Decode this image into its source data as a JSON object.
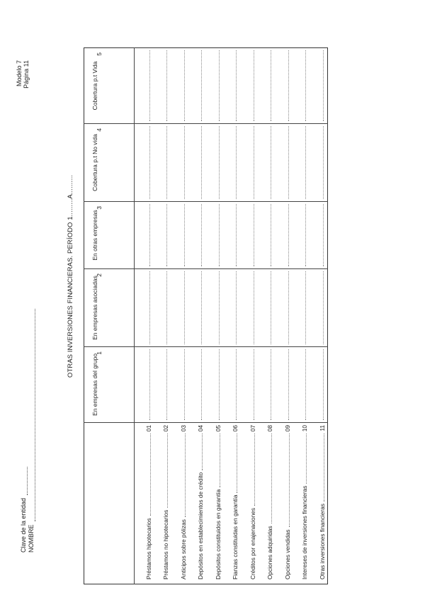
{
  "header": {
    "clave_label": "Clave de la entidad",
    "nombre_label": "NOMBRE",
    "modelo": "Modelo 7",
    "pagina": "Página 11"
  },
  "title": "OTRAS INVERSIONES FINANCIERAS. PERÍODO 1.........A..........",
  "columns": [
    {
      "label": "En empresas del grupo",
      "number": "1"
    },
    {
      "label": "En empresas asociadas",
      "number": "2"
    },
    {
      "label": "En otras empresas",
      "number": "3"
    },
    {
      "label": "Cobertura p.t No vida",
      "number": "4"
    },
    {
      "label": "Cobertura p.t Vida",
      "number": "5"
    }
  ],
  "rows": [
    {
      "label": "Préstamos hipotecarios",
      "code": "01"
    },
    {
      "label": "Préstamos no hipotecarios",
      "code": "02"
    },
    {
      "label": "Anticipos sobre pólizas",
      "code": "03"
    },
    {
      "label": "Depósitos en establecimientos de crédito",
      "code": "04"
    },
    {
      "label": "Depósitos constituidos en garantía",
      "code": "05"
    },
    {
      "label": "Fianzas constituidas en garantía",
      "code": "06"
    },
    {
      "label": "Créditos por enajenaciones",
      "code": "07"
    },
    {
      "label": "Opciones adquiridas",
      "code": "08"
    },
    {
      "label": "Opciones vendidas",
      "code": "09"
    },
    {
      "label": "Intereses de inversiones financieras",
      "code": "10"
    },
    {
      "label": "Otras inversiones financieras",
      "code": "11"
    }
  ]
}
